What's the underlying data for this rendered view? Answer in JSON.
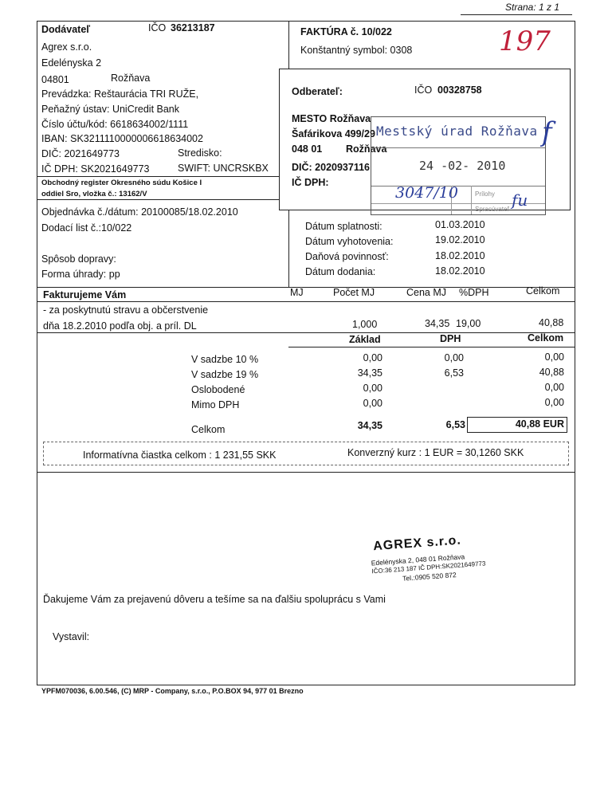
{
  "page_indicator": "Strana: 1 z 1",
  "handwritten_number": "197",
  "supplier": {
    "heading": "Dodávateľ",
    "ico_label": "IČO",
    "ico": "36213187",
    "name": "Agrex s.r.o.",
    "street": "Edelényska 2",
    "zip": "04801",
    "city": "Rožňava",
    "premises": "Prevádzka: Reštaurácia TRI RUŽE,",
    "bank": "Peňažný ústav: UniCredit Bank",
    "account": "Číslo účtu/kód: 6618634002/1111",
    "iban": "IBAN: SK3211110000006618634002",
    "dic": "DIČ: 2021649773",
    "stredisko": "Stredisko:",
    "ic_dph": "IČ DPH: SK2021649773",
    "swift": "SWIFT: UNCRSKBX",
    "register_1": "Obchodný register Okresného súdu Košice I",
    "register_2": "oddiel Sro, vložka č.: 13162/V"
  },
  "invoice": {
    "title": "FAKTÚRA č. 10/022",
    "constant_symbol": "Konštantný symbol: 0308"
  },
  "customer": {
    "heading": "Odberateľ:",
    "ico_label": "IČO",
    "ico": "00328758",
    "name": "MESTO Rožňava",
    "street": "Šafárikova 499/29",
    "zip": "048 01",
    "city": "Rožňava",
    "dic": "DIČ: 2020937116",
    "ic_dph": "IČ DPH:"
  },
  "stamp": {
    "office": "Mestský úrad Rožňava",
    "date": "24 -02- 2010",
    "number": "3047/10",
    "attachments_label": "Prílohy",
    "processor_label": "Spracúvateľ"
  },
  "order": {
    "order_line": "Objednávka č./dátum: 20100085/18.02.2010",
    "delivery_note": "Dodací list č.:10/022",
    "transport": "Spôsob dopravy:",
    "payment": "Forma úhrady: pp"
  },
  "dates": [
    {
      "label": "Dátum splatnosti:",
      "value": "01.03.2010"
    },
    {
      "label": "Dátum vyhotovenia:",
      "value": "19.02.2010"
    },
    {
      "label": "Daňová povinnosť:",
      "value": "18.02.2010"
    },
    {
      "label": "Dátum dodania:",
      "value": "18.02.2010"
    }
  ],
  "items_table": {
    "headers": {
      "desc": "Fakturujeme Vám",
      "mj": "MJ",
      "qty": "Počet MJ",
      "price": "Cena MJ",
      "vat": "%DPH",
      "total": "Celkom"
    },
    "rows": [
      {
        "desc_1": "- za poskytnutú stravu a občerstvenie",
        "desc_2": "dňa 18.2.2010 podľa obj. a príl. DL",
        "mj": "",
        "qty": "1,000",
        "price": "34,35",
        "vat": "19,00",
        "total": "40,88"
      }
    ]
  },
  "summary": {
    "headers": {
      "base": "Základ",
      "vat": "DPH",
      "total": "Celkom"
    },
    "rows": [
      {
        "label": "V sadzbe  10 %",
        "base": "0,00",
        "vat": "0,00",
        "total": "0,00"
      },
      {
        "label": "V sadzbe  19 %",
        "base": "34,35",
        "vat": "6,53",
        "total": "40,88"
      },
      {
        "label": "Oslobodené",
        "base": "0,00",
        "vat": "",
        "total": "0,00"
      },
      {
        "label": "Mimo DPH",
        "base": "0,00",
        "vat": "",
        "total": "0,00"
      }
    ],
    "total": {
      "label": "Celkom",
      "base": "34,35",
      "vat": "6,53",
      "total": "40,88 EUR"
    }
  },
  "info": {
    "amount": "Informatívna čiastka celkom : 1 231,55 SKK",
    "rate": "Konverzný kurz :  1 EUR = 30,1260 SKK"
  },
  "company_stamp": {
    "name": "AGREX s.r.o.",
    "line_1": "Edelényska 2, 048 01 Rožňava",
    "line_2": "IČO:36 213 187 IČ DPH:SK2021649773",
    "line_3": "Tel.:0905 520 872"
  },
  "thanks": "Ďakujeme Vám za prejavenú dôveru a tešíme sa na ďalšiu spoluprácu s Vami",
  "issued_by": "Vystavil:",
  "footer": "YPFM070036, 6.00.546, (C) MRP - Company, s.r.o., P.O.BOX 94, 977 01 Brezno"
}
